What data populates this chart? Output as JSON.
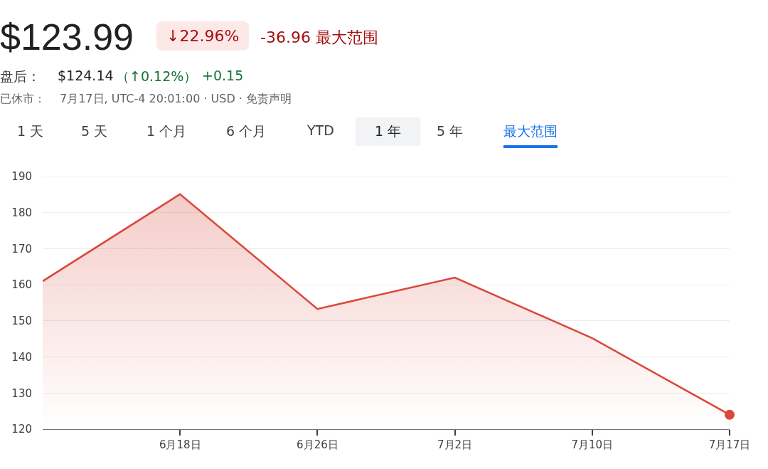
{
  "chart_data": {
    "type": "area",
    "title": "$123.99",
    "annotations": [
      "↓22.96%",
      "-36.96 最大范围",
      "盘后：",
      "$124.14",
      "（↑0.12%）",
      "+0.15",
      "已休市：",
      "7月17日, UTC-4 20:01:00 · USD · 免责声明",
      "1 天",
      "5 天",
      "1 个月",
      "6 个月",
      "YTD",
      "1 年",
      "5 年",
      "最大范围"
    ],
    "categories": [
      null,
      "6月18日",
      "6月26日",
      "7月2日",
      "7月10日",
      "7月17日"
    ],
    "series": [
      {
        "color": "#d9483b",
        "values": [
          161,
          185.1,
          153.3,
          162,
          145.2,
          124
        ]
      },
      {
        "type": "scatter",
        "color": "#d9483b",
        "values": [
          null,
          null,
          null,
          null,
          null,
          124
        ]
      }
    ],
    "ylim": [
      120,
      190
    ],
    "yticks": [
      120,
      130,
      140,
      150,
      160,
      170,
      180,
      190
    ],
    "grid": "y"
  }
}
